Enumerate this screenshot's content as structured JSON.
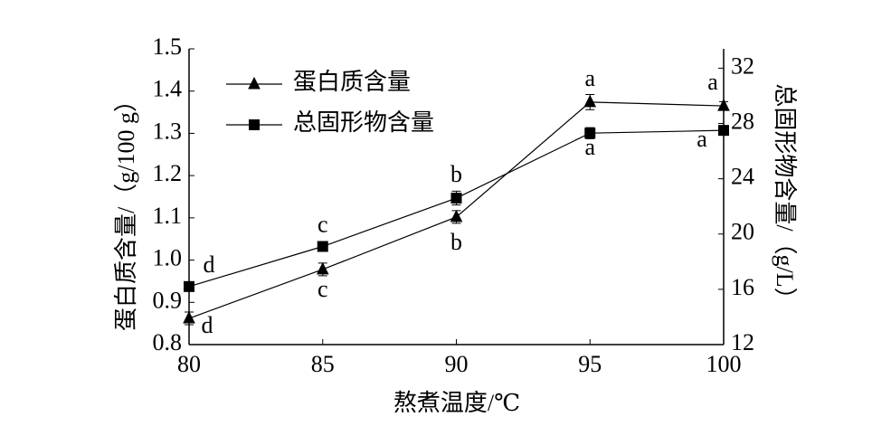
{
  "chart_data": {
    "type": "line",
    "x_label": "熬煮温度/℃",
    "y_label": "蛋白质含量/（g/100 g）",
    "y2_label": "总固形物含量/（g/L）",
    "x": [
      80,
      85,
      90,
      95,
      100
    ],
    "xlim": [
      80,
      100
    ],
    "xticks": [
      80,
      85,
      90,
      95,
      100
    ],
    "ylim": [
      0.8,
      1.5
    ],
    "yticks": [
      0.8,
      0.9,
      {
        "value": 1,
        "label": "1.0"
      },
      1.1,
      1.2,
      1.3,
      1.4,
      1.5
    ],
    "y2lim": [
      12,
      33.4
    ],
    "y2ticks": [
      12,
      16,
      20,
      24,
      28,
      32
    ],
    "legend": "upper-left",
    "series": [
      {
        "name": "蛋白质含量",
        "color": "#000000",
        "marker": "triangle",
        "axis": "y",
        "values": [
          0.862,
          0.978,
          1.102,
          1.374,
          1.365
        ],
        "errors": [
          0.015,
          0.015,
          0.015,
          0.018,
          0.01
        ],
        "letters": [
          "d",
          "c",
          "b",
          "a",
          "a"
        ]
      },
      {
        "name": "总固形物含量",
        "color": "#000000",
        "marker": "square",
        "axis": "y2",
        "values": [
          16.2,
          19.1,
          22.6,
          27.3,
          27.5
        ],
        "errors": [
          0.3,
          0.3,
          0.5,
          0.4,
          0.3
        ],
        "letters": [
          "d",
          "c",
          "b",
          "a",
          "a"
        ]
      }
    ]
  }
}
